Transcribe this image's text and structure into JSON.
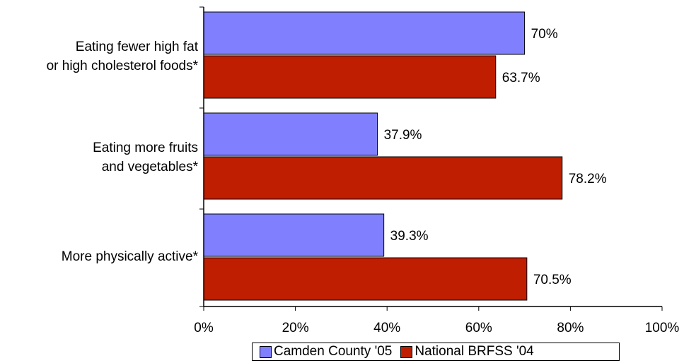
{
  "chart_data": {
    "type": "bar",
    "orientation": "horizontal",
    "title": "",
    "xlabel": "",
    "ylabel": "",
    "xlim": [
      0,
      100
    ],
    "x_ticks": [
      "0%",
      "20%",
      "40%",
      "60%",
      "80%",
      "100%"
    ],
    "grid": false,
    "legend_position": "bottom",
    "categories": [
      [
        "Eating fewer high fat",
        "or high cholesterol foods*"
      ],
      [
        "Eating more fruits",
        "and vegetables*"
      ],
      [
        "More physically active*"
      ]
    ],
    "series": [
      {
        "name": "Camden County '05",
        "color": "#8080ff",
        "values": [
          70,
          37.9,
          39.3
        ],
        "labels": [
          "70%",
          "37.9%",
          "39.3%"
        ]
      },
      {
        "name": "National BRFSS '04",
        "color": "#c01e00",
        "values": [
          63.7,
          78.2,
          70.5
        ],
        "labels": [
          "63.7%",
          "78.2%",
          "70.5%"
        ]
      }
    ]
  }
}
